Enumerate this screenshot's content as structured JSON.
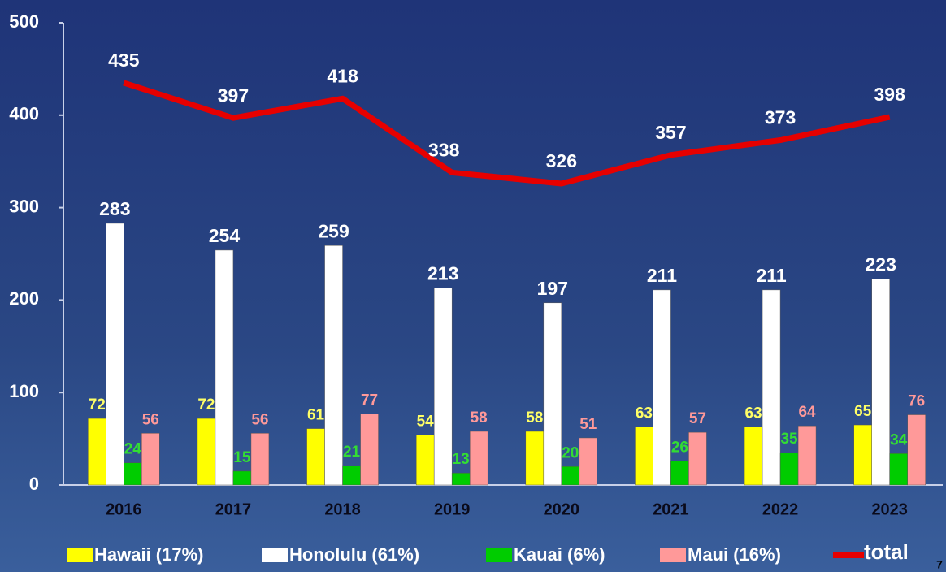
{
  "chart_data": {
    "type": "bar",
    "categories": [
      "2016",
      "2017",
      "2018",
      "2019",
      "2020",
      "2021",
      "2022",
      "2023"
    ],
    "series": [
      {
        "name": "Hawaii (17%)",
        "color": "#ffff00",
        "values": [
          72,
          72,
          61,
          54,
          58,
          63,
          63,
          65
        ]
      },
      {
        "name": "Honolulu (61%)",
        "color": "#ffffff",
        "values": [
          283,
          254,
          259,
          213,
          197,
          211,
          211,
          223
        ]
      },
      {
        "name": "Kauai (6%)",
        "color": "#00cc00",
        "values": [
          24,
          15,
          21,
          13,
          20,
          26,
          35,
          34
        ]
      },
      {
        "name": "Maui (16%)",
        "color": "#ff9999",
        "values": [
          56,
          56,
          77,
          58,
          51,
          57,
          64,
          76
        ]
      },
      {
        "name": "total",
        "color": "#e60000",
        "type": "line",
        "values": [
          435,
          397,
          418,
          338,
          326,
          357,
          373,
          398
        ]
      }
    ],
    "label_colors": [
      "#ffff66",
      "#ffffff",
      "#33dd33",
      "#ff9999",
      "#ffffff"
    ],
    "ylim": [
      0,
      500
    ],
    "yticks": [
      0,
      100,
      200,
      300,
      400,
      500
    ],
    "grid": false,
    "slide_number": "7"
  }
}
